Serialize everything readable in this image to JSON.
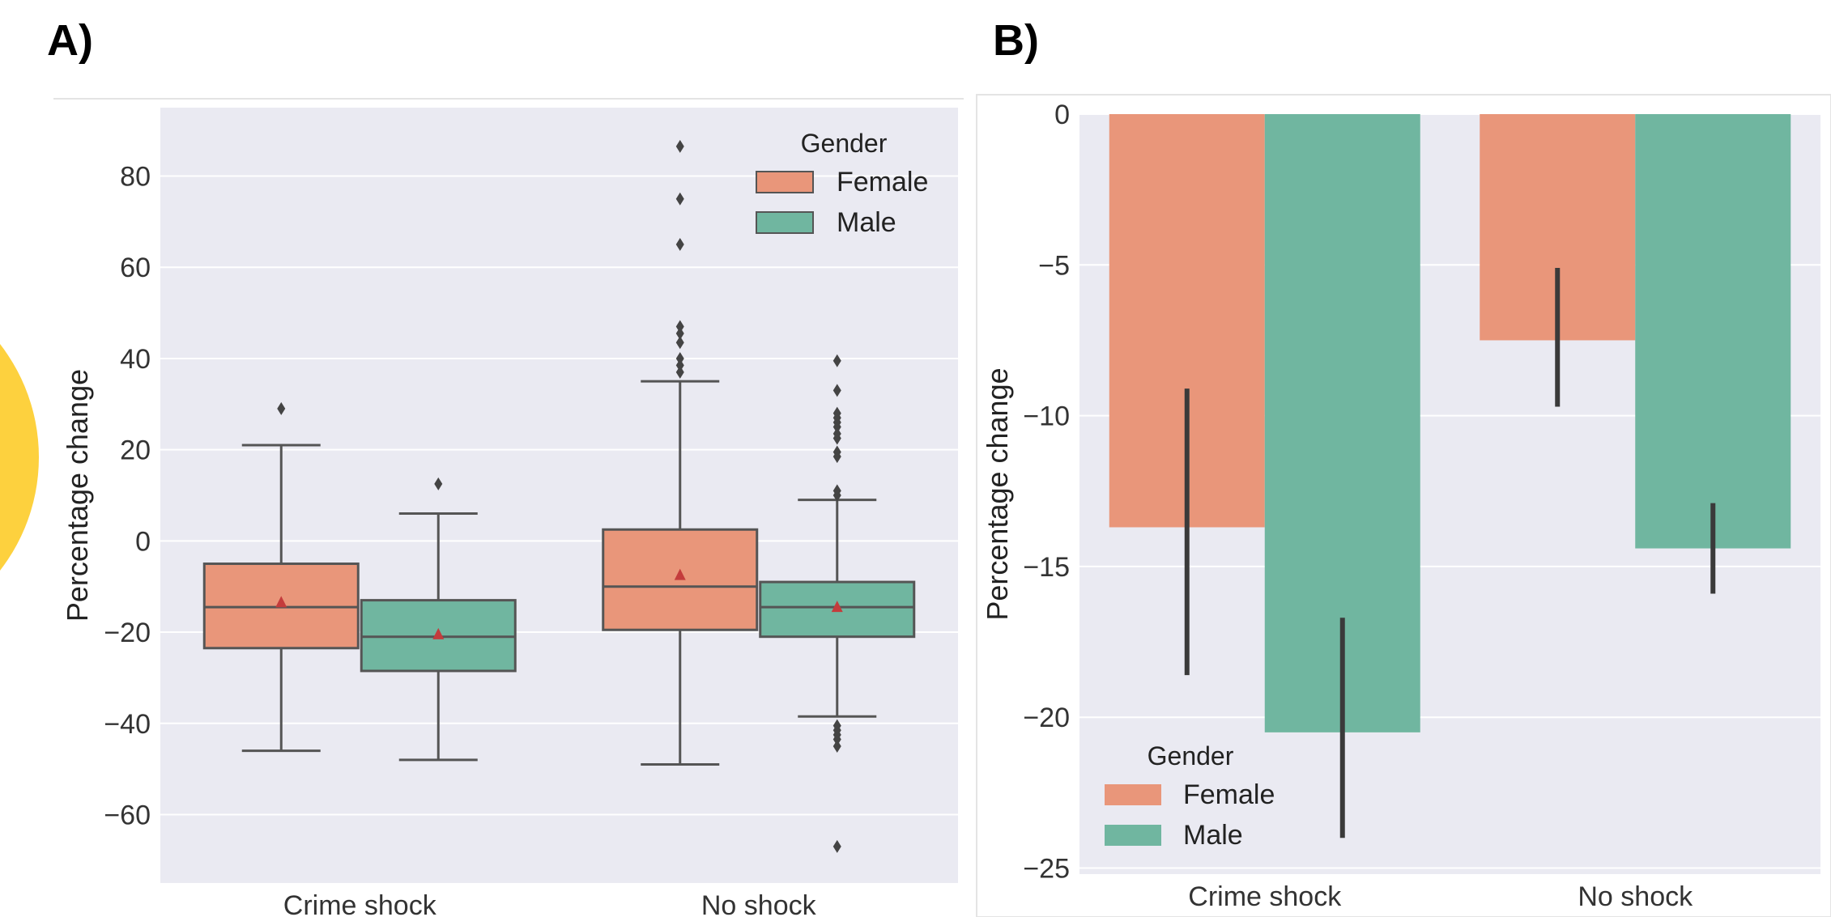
{
  "panels": {
    "a": {
      "label": "A)"
    },
    "b": {
      "label": "B)"
    }
  },
  "colors": {
    "female": "#E9967A",
    "male": "#70B6A0",
    "plot_bg": "#EAEAF2",
    "grid": "#FFFFFF",
    "box_edge": "#555555",
    "mean_marker": "#C43C3C",
    "error_bar": "#3A3A3A",
    "decor_circle": "#FDD13E"
  },
  "chart_data": [
    {
      "type": "box",
      "panel": "A)",
      "xlabel": "",
      "ylabel": "Percentage change",
      "ylim": [
        -75,
        95
      ],
      "yticks": [
        -60,
        -40,
        -20,
        0,
        20,
        40,
        60,
        80
      ],
      "ytick_labels": [
        "−60",
        "−40",
        "−20",
        "0",
        "20",
        "40",
        "60",
        "80"
      ],
      "categories": [
        "Crime shock",
        "No shock"
      ],
      "legend": {
        "title": "Gender",
        "entries": [
          "Female",
          "Male"
        ],
        "placement": "top-right"
      },
      "series": [
        {
          "name": "Female",
          "boxes": [
            {
              "q1": -23.5,
              "median": -14.5,
              "q3": -5,
              "whisker_low": -46,
              "whisker_high": 21,
              "mean": -13.5,
              "outliers": [
                29
              ]
            },
            {
              "q1": -19.5,
              "median": -10,
              "q3": 2.5,
              "whisker_low": -49,
              "whisker_high": 35,
              "mean": -7.5,
              "outliers": [
                37,
                38.5,
                40,
                43.5,
                45.5,
                47,
                65,
                75,
                86.5
              ]
            }
          ]
        },
        {
          "name": "Male",
          "boxes": [
            {
              "q1": -28.5,
              "median": -21,
              "q3": -13,
              "whisker_low": -48,
              "whisker_high": 6,
              "mean": -20.5,
              "outliers": [
                12.5
              ]
            },
            {
              "q1": -21,
              "median": -14.5,
              "q3": -9,
              "whisker_low": -38.5,
              "whisker_high": 9,
              "mean": -14.5,
              "outliers": [
                -45,
                -43.5,
                -42.5,
                -41.5,
                -40.5,
                10,
                11,
                18.5,
                19.5,
                22.5,
                23.5,
                25,
                26,
                27,
                28,
                33,
                39.5,
                -67
              ]
            }
          ]
        }
      ]
    },
    {
      "type": "bar",
      "panel": "B)",
      "xlabel": "",
      "ylabel": "Percentage change",
      "ylim": [
        -25.2,
        0
      ],
      "yticks": [
        -25,
        -20,
        -15,
        -10,
        -5,
        0
      ],
      "ytick_labels": [
        "−25",
        "−20",
        "−15",
        "−10",
        "−5",
        "0"
      ],
      "categories": [
        "Crime shock",
        "No shock"
      ],
      "legend": {
        "title": "Gender",
        "entries": [
          "Female",
          "Male"
        ],
        "placement": "bottom-left"
      },
      "series": [
        {
          "name": "Female",
          "values": [
            -13.7,
            -7.5
          ],
          "error_low": [
            -18.6,
            -9.7
          ],
          "error_high": [
            -9.1,
            -5.1
          ]
        },
        {
          "name": "Male",
          "values": [
            -20.5,
            -14.4
          ],
          "error_low": [
            -24.0,
            -15.9
          ],
          "error_high": [
            -16.7,
            -12.9
          ]
        }
      ]
    }
  ]
}
